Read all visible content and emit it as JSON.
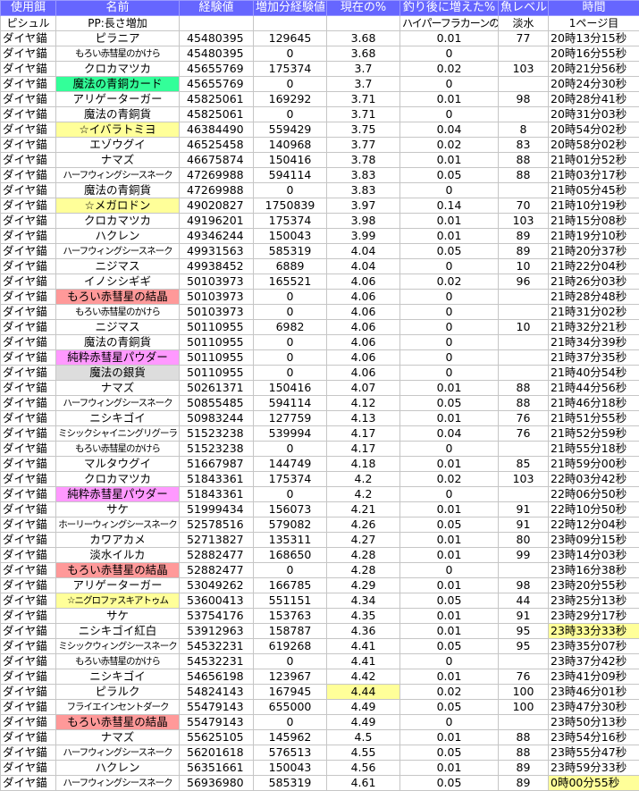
{
  "colors": {
    "header_bg": "#6666ff",
    "green": "#33ff99",
    "yellow": "#ffff99",
    "red": "#ff9999",
    "pink": "#ff99ff",
    "gray": "#dddddd"
  },
  "headers": [
    "使用餌",
    "名前",
    "経験値",
    "増加分経験値",
    "現在の%",
    "釣り後に増えた%",
    "魚レベル",
    "時間"
  ],
  "subheaders": [
    "ピシュル",
    "PP:長さ増加",
    "",
    "",
    "",
    "ハイパーフラカーンの槍",
    "淡水",
    "1ページ目"
  ],
  "rows": [
    {
      "bait": "ダイヤ錨",
      "name": "ピラニア",
      "exp": "45480395",
      "gain": "129645",
      "pct": "3.68",
      "inc": "0.01",
      "lvl": "77",
      "time": "20時13分15秒"
    },
    {
      "bait": "ダイヤ錨",
      "name": "もろい赤彗星のかけら",
      "exp": "45480395",
      "gain": "0",
      "pct": "3.68",
      "inc": "0",
      "lvl": "",
      "time": "20時16分55秒"
    },
    {
      "bait": "ダイヤ錨",
      "name": "クロカマツカ",
      "exp": "45655769",
      "gain": "175374",
      "pct": "3.7",
      "inc": "0.02",
      "lvl": "103",
      "time": "20時21分56秒"
    },
    {
      "bait": "ダイヤ錨",
      "name": "魔法の青銅カード",
      "exp": "45655769",
      "gain": "0",
      "pct": "3.7",
      "inc": "0",
      "lvl": "",
      "time": "20時24分30秒",
      "name_bg": "green"
    },
    {
      "bait": "ダイヤ錨",
      "name": "アリゲーターガー",
      "exp": "45825061",
      "gain": "169292",
      "pct": "3.71",
      "inc": "0.01",
      "lvl": "98",
      "time": "20時28分41秒"
    },
    {
      "bait": "ダイヤ錨",
      "name": "魔法の青銅貨",
      "exp": "45825061",
      "gain": "0",
      "pct": "3.71",
      "inc": "0",
      "lvl": "",
      "time": "20時31分03秒"
    },
    {
      "bait": "ダイヤ錨",
      "name": "☆イバラトミヨ",
      "exp": "46384490",
      "gain": "559429",
      "pct": "3.75",
      "inc": "0.04",
      "lvl": "8",
      "time": "20時54分02秒",
      "name_bg": "yellow"
    },
    {
      "bait": "ダイヤ錨",
      "name": "エゾウグイ",
      "exp": "46525458",
      "gain": "140968",
      "pct": "3.77",
      "inc": "0.02",
      "lvl": "83",
      "time": "20時58分02秒"
    },
    {
      "bait": "ダイヤ錨",
      "name": "ナマズ",
      "exp": "46675874",
      "gain": "150416",
      "pct": "3.78",
      "inc": "0.01",
      "lvl": "88",
      "time": "21時01分52秒"
    },
    {
      "bait": "ダイヤ錨",
      "name": "ハーフウィングシースネーク",
      "exp": "47269988",
      "gain": "594114",
      "pct": "3.83",
      "inc": "0.05",
      "lvl": "88",
      "time": "21時03分17秒"
    },
    {
      "bait": "ダイヤ錨",
      "name": "魔法の青銅貨",
      "exp": "47269988",
      "gain": "0",
      "pct": "3.83",
      "inc": "0",
      "lvl": "",
      "time": "21時05分45秒"
    },
    {
      "bait": "ダイヤ錨",
      "name": "☆メガロドン",
      "exp": "49020827",
      "gain": "1750839",
      "pct": "3.97",
      "inc": "0.14",
      "lvl": "70",
      "time": "21時10分19秒",
      "name_bg": "yellow"
    },
    {
      "bait": "ダイヤ錨",
      "name": "クロカマツカ",
      "exp": "49196201",
      "gain": "175374",
      "pct": "3.98",
      "inc": "0.01",
      "lvl": "103",
      "time": "21時15分08秒"
    },
    {
      "bait": "ダイヤ錨",
      "name": "ハクレン",
      "exp": "49346244",
      "gain": "150043",
      "pct": "3.99",
      "inc": "0.01",
      "lvl": "89",
      "time": "21時19分10秒"
    },
    {
      "bait": "ダイヤ錨",
      "name": "ハーフウィングシースネーク",
      "exp": "49931563",
      "gain": "585319",
      "pct": "4.04",
      "inc": "0.05",
      "lvl": "89",
      "time": "21時20分37秒"
    },
    {
      "bait": "ダイヤ錨",
      "name": "ニジマス",
      "exp": "49938452",
      "gain": "6889",
      "pct": "4.04",
      "inc": "0",
      "lvl": "10",
      "time": "21時22分04秒"
    },
    {
      "bait": "ダイヤ錨",
      "name": "イノシシギギ",
      "exp": "50103973",
      "gain": "165521",
      "pct": "4.06",
      "inc": "0.02",
      "lvl": "96",
      "time": "21時26分03秒"
    },
    {
      "bait": "ダイヤ錨",
      "name": "もろい赤彗星の結晶",
      "exp": "50103973",
      "gain": "0",
      "pct": "4.06",
      "inc": "0",
      "lvl": "",
      "time": "21時28分48秒",
      "name_bg": "red"
    },
    {
      "bait": "ダイヤ錨",
      "name": "もろい赤彗星のかけら",
      "exp": "50103973",
      "gain": "0",
      "pct": "4.06",
      "inc": "0",
      "lvl": "",
      "time": "21時31分02秒"
    },
    {
      "bait": "ダイヤ錨",
      "name": "ニジマス",
      "exp": "50110955",
      "gain": "6982",
      "pct": "4.06",
      "inc": "0",
      "lvl": "10",
      "time": "21時32分21秒"
    },
    {
      "bait": "ダイヤ錨",
      "name": "魔法の青銅貨",
      "exp": "50110955",
      "gain": "0",
      "pct": "4.06",
      "inc": "0",
      "lvl": "",
      "time": "21時34分39秒"
    },
    {
      "bait": "ダイヤ錨",
      "name": "純粋赤彗星パウダー",
      "exp": "50110955",
      "gain": "0",
      "pct": "4.06",
      "inc": "0",
      "lvl": "",
      "time": "21時37分35秒",
      "name_bg": "pink"
    },
    {
      "bait": "ダイヤ錨",
      "name": "魔法の銀貨",
      "exp": "50110955",
      "gain": "0",
      "pct": "4.06",
      "inc": "0",
      "lvl": "",
      "time": "21時40分54秒",
      "name_bg": "gray"
    },
    {
      "bait": "ダイヤ錨",
      "name": "ナマズ",
      "exp": "50261371",
      "gain": "150416",
      "pct": "4.07",
      "inc": "0.01",
      "lvl": "88",
      "time": "21時44分56秒"
    },
    {
      "bait": "ダイヤ錨",
      "name": "ハーフウィングシースネーク",
      "exp": "50855485",
      "gain": "594114",
      "pct": "4.12",
      "inc": "0.05",
      "lvl": "88",
      "time": "21時46分18秒"
    },
    {
      "bait": "ダイヤ錨",
      "name": "ニシキゴイ",
      "exp": "50983244",
      "gain": "127759",
      "pct": "4.13",
      "inc": "0.01",
      "lvl": "76",
      "time": "21時51分55秒"
    },
    {
      "bait": "ダイヤ錨",
      "name": "ミシックシャイニングリグーラ",
      "exp": "51523238",
      "gain": "539994",
      "pct": "4.17",
      "inc": "0.04",
      "lvl": "76",
      "time": "21時52分59秒"
    },
    {
      "bait": "ダイヤ錨",
      "name": "もろい赤彗星のかけら",
      "exp": "51523238",
      "gain": "0",
      "pct": "4.17",
      "inc": "0",
      "lvl": "",
      "time": "21時55分18秒"
    },
    {
      "bait": "ダイヤ錨",
      "name": "マルタウグイ",
      "exp": "51667987",
      "gain": "144749",
      "pct": "4.18",
      "inc": "0.01",
      "lvl": "85",
      "time": "21時59分00秒"
    },
    {
      "bait": "ダイヤ錨",
      "name": "クロカマツカ",
      "exp": "51843361",
      "gain": "175374",
      "pct": "4.2",
      "inc": "0.02",
      "lvl": "103",
      "time": "22時03分42秒"
    },
    {
      "bait": "ダイヤ錨",
      "name": "純粋赤彗星パウダー",
      "exp": "51843361",
      "gain": "0",
      "pct": "4.2",
      "inc": "0",
      "lvl": "",
      "time": "22時06分50秒",
      "name_bg": "pink"
    },
    {
      "bait": "ダイヤ錨",
      "name": "サケ",
      "exp": "51999434",
      "gain": "156073",
      "pct": "4.21",
      "inc": "0.01",
      "lvl": "91",
      "time": "22時10分50秒"
    },
    {
      "bait": "ダイヤ錨",
      "name": "ホーリーウィングシースネーク",
      "exp": "52578516",
      "gain": "579082",
      "pct": "4.26",
      "inc": "0.05",
      "lvl": "91",
      "time": "22時12分04秒"
    },
    {
      "bait": "ダイヤ錨",
      "name": "カワアカメ",
      "exp": "52713827",
      "gain": "135311",
      "pct": "4.27",
      "inc": "0.01",
      "lvl": "80",
      "time": "23時09分15秒"
    },
    {
      "bait": "ダイヤ錨",
      "name": "淡水イルカ",
      "exp": "52882477",
      "gain": "168650",
      "pct": "4.28",
      "inc": "0.01",
      "lvl": "99",
      "time": "23時14分03秒"
    },
    {
      "bait": "ダイヤ錨",
      "name": "もろい赤彗星の結晶",
      "exp": "52882477",
      "gain": "0",
      "pct": "4.28",
      "inc": "0",
      "lvl": "",
      "time": "23時16分38秒",
      "name_bg": "red"
    },
    {
      "bait": "ダイヤ錨",
      "name": "アリゲーターガー",
      "exp": "53049262",
      "gain": "166785",
      "pct": "4.29",
      "inc": "0.01",
      "lvl": "98",
      "time": "23時20分55秒"
    },
    {
      "bait": "ダイヤ錨",
      "name": "☆ニグロファスキアトゥム",
      "exp": "53600413",
      "gain": "551151",
      "pct": "4.34",
      "inc": "0.05",
      "lvl": "44",
      "time": "23時25分13秒",
      "name_bg": "yellow"
    },
    {
      "bait": "ダイヤ錨",
      "name": "サケ",
      "exp": "53754176",
      "gain": "153763",
      "pct": "4.35",
      "inc": "0.01",
      "lvl": "91",
      "time": "23時29分17秒"
    },
    {
      "bait": "ダイヤ錨",
      "name": "ニシキゴイ紅白",
      "exp": "53912963",
      "gain": "158787",
      "pct": "4.36",
      "inc": "0.01",
      "lvl": "95",
      "time": "23時33分33秒",
      "time_bg": "yellow"
    },
    {
      "bait": "ダイヤ錨",
      "name": "ミシックウィングシースネーク",
      "exp": "54532231",
      "gain": "619268",
      "pct": "4.41",
      "inc": "0.05",
      "lvl": "95",
      "time": "23時35分07秒"
    },
    {
      "bait": "ダイヤ錨",
      "name": "もろい赤彗星のかけら",
      "exp": "54532231",
      "gain": "0",
      "pct": "4.41",
      "inc": "0",
      "lvl": "",
      "time": "23時37分42秒"
    },
    {
      "bait": "ダイヤ錨",
      "name": "ニシキゴイ",
      "exp": "54656198",
      "gain": "123967",
      "pct": "4.42",
      "inc": "0.01",
      "lvl": "76",
      "time": "23時41分09秒"
    },
    {
      "bait": "ダイヤ錨",
      "name": "ピラルク",
      "exp": "54824143",
      "gain": "167945",
      "pct": "4.44",
      "inc": "0.02",
      "lvl": "100",
      "time": "23時46分01秒",
      "pct_bg": "yellow"
    },
    {
      "bait": "ダイヤ錨",
      "name": "フライエインセントダーク",
      "exp": "55479143",
      "gain": "655000",
      "pct": "4.49",
      "inc": "0.05",
      "lvl": "100",
      "time": "23時47分30秒"
    },
    {
      "bait": "ダイヤ錨",
      "name": "もろい赤彗星の結晶",
      "exp": "55479143",
      "gain": "0",
      "pct": "4.49",
      "inc": "0",
      "lvl": "",
      "time": "23時50分13秒",
      "name_bg": "red"
    },
    {
      "bait": "ダイヤ錨",
      "name": "ナマズ",
      "exp": "55625105",
      "gain": "145962",
      "pct": "4.5",
      "inc": "0.01",
      "lvl": "88",
      "time": "23時54分16秒"
    },
    {
      "bait": "ダイヤ錨",
      "name": "ハーフウィングシースネーク",
      "exp": "56201618",
      "gain": "576513",
      "pct": "4.55",
      "inc": "0.05",
      "lvl": "88",
      "time": "23時55分47秒"
    },
    {
      "bait": "ダイヤ錨",
      "name": "ハクレン",
      "exp": "56351661",
      "gain": "150043",
      "pct": "4.56",
      "inc": "0.01",
      "lvl": "89",
      "time": "23時59分33秒"
    },
    {
      "bait": "ダイヤ錨",
      "name": "ハーフウィングシースネーク",
      "exp": "56936980",
      "gain": "585319",
      "pct": "4.61",
      "inc": "0.05",
      "lvl": "89",
      "time": "0時00分55秒",
      "time_bg": "yellow"
    }
  ]
}
